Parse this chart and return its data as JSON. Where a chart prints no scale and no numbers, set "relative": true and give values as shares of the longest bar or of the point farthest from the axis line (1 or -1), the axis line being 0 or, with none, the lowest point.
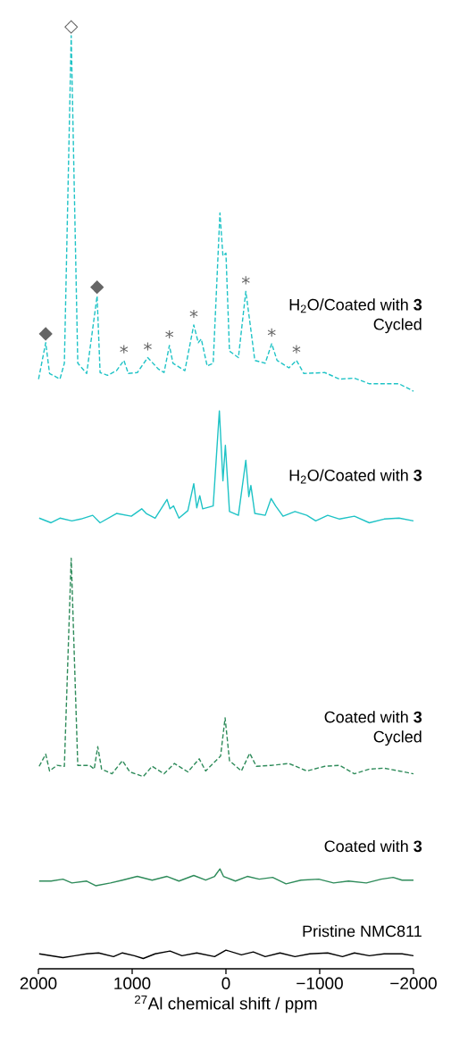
{
  "chart_data": {
    "type": "line",
    "relative": true,
    "xlabel": "$^{27}$Al chemical shift / ppm",
    "xlim": [
      2000,
      -2000
    ],
    "xticks": [
      2000,
      1000,
      0,
      {
        "value": -1000,
        "label": "−1000"
      },
      {
        "value": -2000,
        "label": "−2000"
      }
    ],
    "annotations": [
      {
        "text": "◆",
        "x": 1922,
        "y": 0.671
      },
      {
        "text": "◇",
        "x": 1650,
        "y": 1.0
      },
      {
        "text": "◆",
        "x": 1374,
        "y": 0.721
      },
      {
        "text": "*",
        "x": 1088,
        "y": 0.652
      },
      {
        "text": "*",
        "x": 834,
        "y": 0.655
      },
      {
        "text": "*",
        "x": 603,
        "y": 0.668
      },
      {
        "text": "*",
        "x": 343,
        "y": 0.69
      },
      {
        "text": "*",
        "x": -212,
        "y": 0.726
      },
      {
        "text": "*",
        "x": -488,
        "y": 0.67
      },
      {
        "text": "*",
        "x": -752,
        "y": 0.652
      }
    ],
    "series": [
      {
        "name": "H$_{2}$O/Coated with **3** Cycled",
        "color": "#1fc3c6",
        "line_style": "dashed",
        "x": [
          1998,
          1922,
          1881,
          1770,
          1723,
          1650,
          1580,
          1485,
          1374,
          1342,
          1263,
          1167,
          1088,
          1041,
          945,
          834,
          723,
          660,
          603,
          565,
          438,
          343,
          295,
          263,
          200,
          136,
          64,
          32,
          0,
          -38,
          -133,
          -212,
          -254,
          -308,
          -419,
          -488,
          -545,
          -672,
          -752,
          -831,
          -1053,
          -1212,
          -1370,
          -1529,
          -1687,
          -1846,
          -2000
        ],
        "values": [
          0.632,
          0.671,
          0.638,
          0.632,
          0.649,
          1.0,
          0.649,
          0.638,
          0.721,
          0.639,
          0.636,
          0.641,
          0.652,
          0.638,
          0.639,
          0.655,
          0.643,
          0.639,
          0.668,
          0.649,
          0.641,
          0.69,
          0.671,
          0.675,
          0.646,
          0.649,
          0.81,
          0.764,
          0.767,
          0.662,
          0.655,
          0.726,
          0.694,
          0.652,
          0.649,
          0.67,
          0.652,
          0.644,
          0.652,
          0.638,
          0.639,
          0.632,
          0.633,
          0.627,
          0.627,
          0.627,
          0.619
        ]
      },
      {
        "name": "H$_{2}$O/Coated with **3**",
        "color": "#1fc3c6",
        "line_style": "solid",
        "x": [
          1992,
          1865,
          1770,
          1643,
          1548,
          1421,
          1342,
          1167,
          1009,
          898,
          850,
          755,
          628,
          597,
          558,
          501,
          406,
          343,
          311,
          279,
          248,
          136,
          70,
          32,
          6,
          -38,
          -133,
          -212,
          -244,
          -266,
          -308,
          -419,
          -482,
          -530,
          -609,
          -736,
          -863,
          -958,
          -1085,
          -1212,
          -1370,
          -1529,
          -1687,
          -1846,
          -2000
        ],
        "values": [
          0.483,
          0.478,
          0.483,
          0.48,
          0.482,
          0.486,
          0.478,
          0.488,
          0.485,
          0.493,
          0.488,
          0.483,
          0.503,
          0.493,
          0.496,
          0.483,
          0.491,
          0.52,
          0.494,
          0.507,
          0.493,
          0.496,
          0.598,
          0.523,
          0.561,
          0.49,
          0.486,
          0.545,
          0.506,
          0.518,
          0.488,
          0.486,
          0.504,
          0.496,
          0.485,
          0.49,
          0.486,
          0.48,
          0.486,
          0.482,
          0.485,
          0.478,
          0.482,
          0.483,
          0.48
        ]
      },
      {
        "name": "Coated with **3** Cycled",
        "color": "#2e8b5a",
        "line_style": "dashed",
        "x": [
          1992,
          1922,
          1881,
          1802,
          1723,
          1650,
          1580,
          1453,
          1405,
          1367,
          1326,
          1215,
          1104,
          1025,
          882,
          787,
          660,
          549,
          406,
          285,
          216,
          57,
          9,
          -38,
          -165,
          -254,
          -324,
          -482,
          -672,
          -863,
          -1053,
          -1212,
          -1370,
          -1529,
          -1687,
          -1846,
          -2000
        ],
        "values": [
          0.217,
          0.23,
          0.212,
          0.218,
          0.217,
          0.44,
          0.218,
          0.218,
          0.214,
          0.238,
          0.214,
          0.209,
          0.223,
          0.211,
          0.206,
          0.217,
          0.209,
          0.22,
          0.211,
          0.225,
          0.212,
          0.228,
          0.269,
          0.223,
          0.212,
          0.231,
          0.217,
          0.218,
          0.22,
          0.212,
          0.217,
          0.218,
          0.209,
          0.214,
          0.215,
          0.212,
          0.209
        ]
      },
      {
        "name": "Coated with **3**",
        "color": "#2e8b5a",
        "line_style": "solid",
        "x": [
          1992,
          1865,
          1738,
          1643,
          1485,
          1389,
          1231,
          1104,
          945,
          787,
          628,
          501,
          343,
          216,
          121,
          64,
          26,
          -101,
          -228,
          -355,
          -498,
          -641,
          -799,
          -990,
          -1148,
          -1307,
          -1497,
          -1656,
          -1783,
          -1878,
          -2000
        ],
        "values": [
          0.094,
          0.094,
          0.096,
          0.092,
          0.094,
          0.089,
          0.092,
          0.095,
          0.099,
          0.095,
          0.099,
          0.094,
          0.1,
          0.095,
          0.099,
          0.107,
          0.099,
          0.094,
          0.099,
          0.096,
          0.098,
          0.091,
          0.095,
          0.096,
          0.092,
          0.094,
          0.092,
          0.096,
          0.098,
          0.095,
          0.095
        ]
      },
      {
        "name": "Pristine NMC811",
        "color": "#000000",
        "line_style": "solid",
        "x": [
          1992,
          1865,
          1738,
          1611,
          1485,
          1358,
          1199,
          1104,
          977,
          882,
          755,
          596,
          469,
          311,
          121,
          0,
          -165,
          -292,
          -419,
          -577,
          -736,
          -894,
          -1085,
          -1243,
          -1370,
          -1529,
          -1687,
          -1878,
          -2000
        ],
        "values": [
          0.016,
          0.014,
          0.012,
          0.014,
          0.016,
          0.017,
          0.013,
          0.017,
          0.014,
          0.011,
          0.016,
          0.019,
          0.014,
          0.017,
          0.013,
          0.02,
          0.015,
          0.018,
          0.013,
          0.017,
          0.013,
          0.016,
          0.017,
          0.013,
          0.017,
          0.014,
          0.016,
          0.016,
          0.014
        ]
      }
    ]
  }
}
